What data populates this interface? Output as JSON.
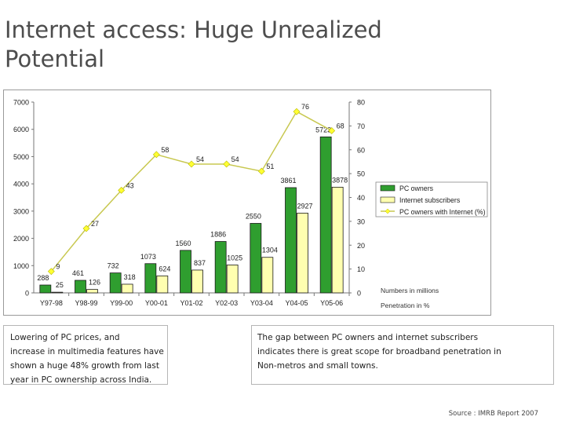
{
  "title": "Internet access: Huge Unrealized Potential",
  "chart_data": {
    "type": "bar+line",
    "categories": [
      "Y97-98",
      "Y98-99",
      "Y99-00",
      "Y00-01",
      "Y01-02",
      "Y02-03",
      "Y03-04",
      "Y04-05",
      "Y05-06"
    ],
    "series": [
      {
        "name": "PC owners",
        "type": "bar",
        "axis": "left",
        "color": "#2f9e2f",
        "values": [
          288,
          461,
          732,
          1073,
          1560,
          1886,
          2550,
          3861,
          5723
        ]
      },
      {
        "name": "Internet subscribers",
        "type": "bar",
        "axis": "left",
        "color": "#ffffb0",
        "values": [
          25,
          126,
          318,
          624,
          837,
          1025,
          1304,
          2927,
          3878
        ]
      },
      {
        "name": "PC owners with Internet (%)",
        "type": "line",
        "axis": "right",
        "color": "#c8c850",
        "values": [
          9,
          27,
          43,
          58,
          54,
          54,
          51,
          76,
          68
        ]
      }
    ],
    "y_left": {
      "min": 0,
      "max": 7000,
      "ticks": [
        "0",
        "1000",
        "2000",
        "3000",
        "4000",
        "5000",
        "6000",
        "7000"
      ]
    },
    "y_right": {
      "min": 0,
      "max": 80,
      "ticks": [
        "0",
        "10",
        "20",
        "30",
        "40",
        "50",
        "60",
        "70",
        "80"
      ]
    },
    "legend_position": "right",
    "notes": [
      "Numbers in millions",
      "Penetration in %"
    ]
  },
  "boxes": {
    "left_lines": [
      "Lowering of PC prices, and",
      "increase in multimedia features have",
      "shown a huge 48% growth from last",
      "year in PC ownership across India."
    ],
    "right_lines": [
      "The gap between PC owners and internet subscribers",
      "indicates there is great scope for broadband penetration in",
      "Non-metros and small towns."
    ]
  },
  "source": "Source : IMRB Report 2007"
}
